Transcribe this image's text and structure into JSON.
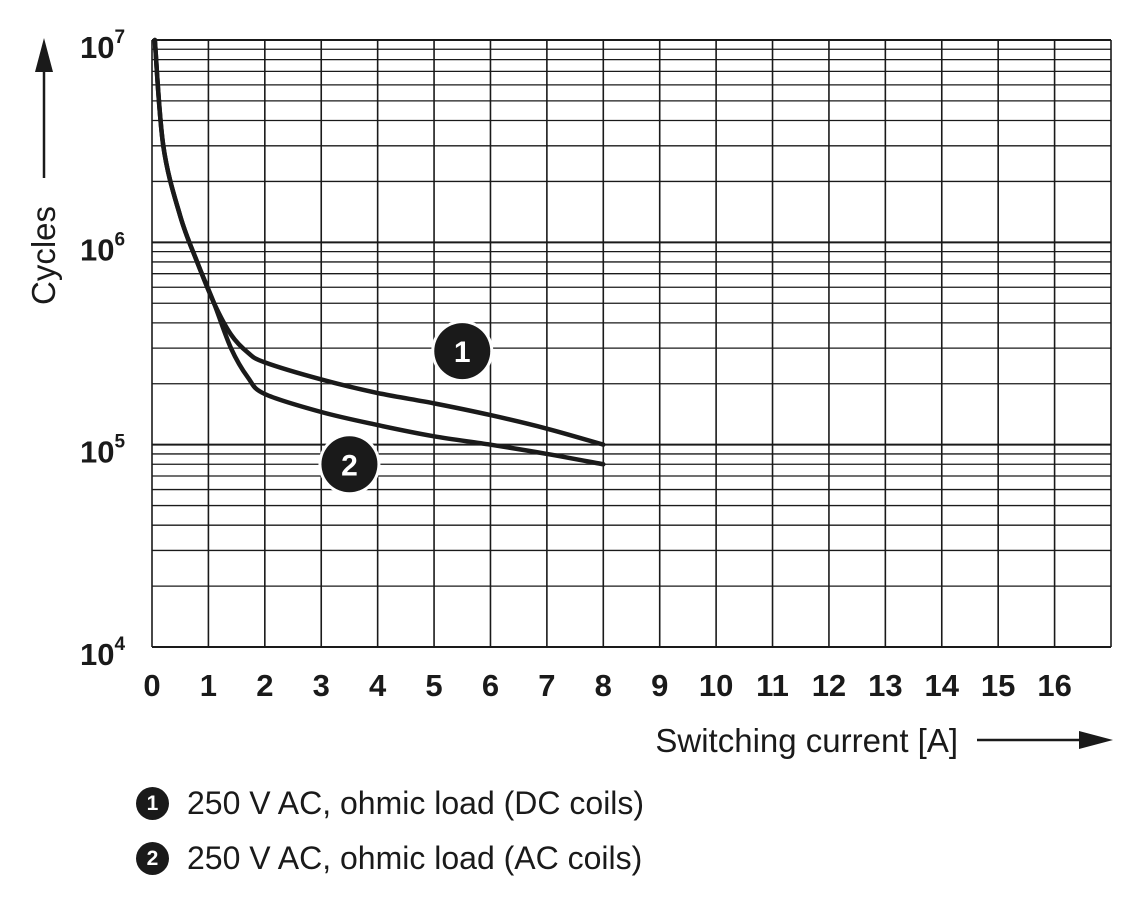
{
  "chart_data": {
    "type": "line",
    "title": "",
    "xlabel": "Switching current [A]",
    "ylabel": "Cycles",
    "xlim": [
      0,
      17
    ],
    "ylim": [
      10000,
      10000000
    ],
    "yscale": "log",
    "grid": true,
    "x_ticks": [
      "0",
      "1",
      "2",
      "3",
      "4",
      "5",
      "6",
      "7",
      "8",
      "9",
      "10",
      "11",
      "12",
      "13",
      "14",
      "15",
      "16"
    ],
    "y_ticks": [
      {
        "base": "10",
        "exp": "4",
        "value": 10000
      },
      {
        "base": "10",
        "exp": "5",
        "value": 100000
      },
      {
        "base": "10",
        "exp": "6",
        "value": 1000000
      },
      {
        "base": "10",
        "exp": "7",
        "value": 10000000
      }
    ],
    "series": [
      {
        "marker": "1",
        "label": "250 V AC, ohmic load (DC coils)",
        "label_at": {
          "x": 5.5,
          "y": 290000
        },
        "x": [
          0.05,
          0.2,
          0.5,
          0.8,
          1.1,
          1.4,
          1.7,
          2.0,
          3.0,
          4.0,
          5.0,
          6.0,
          7.0,
          8.0
        ],
        "y": [
          10000000,
          3000000,
          1350000,
          800000,
          500000,
          350000,
          285000,
          255000,
          210000,
          180000,
          160000,
          140000,
          120000,
          100000
        ]
      },
      {
        "marker": "2",
        "label": "250 V AC, ohmic load (AC coils)",
        "label_at": {
          "x": 3.5,
          "y": 80000
        },
        "x": [
          0.05,
          0.2,
          0.5,
          0.8,
          1.1,
          1.4,
          1.7,
          2.0,
          3.0,
          4.0,
          5.0,
          6.0,
          7.0,
          8.0
        ],
        "y": [
          10000000,
          3000000,
          1350000,
          800000,
          500000,
          300000,
          215000,
          178000,
          145000,
          125000,
          110000,
          100000,
          90000,
          80000
        ]
      }
    ]
  }
}
